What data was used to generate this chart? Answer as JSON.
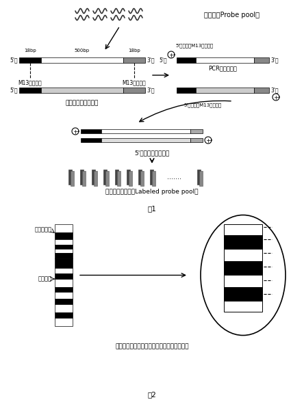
{
  "fig_width": 4.44,
  "fig_height": 5.88,
  "dpi": 100,
  "bg_color": "#ffffff",
  "probe_pool_label": "探针池（Probe pool）",
  "single_probe_label": "单个探针构造示意图",
  "pcr_label": "PCR扩增和标记",
  "double_strand_label": "5'端标记的双链探针",
  "labeled_pool_label": "标记后的探针库（Labeled probe pool）",
  "non_repeat_label": "非重复序列",
  "repeat_label": "重复序列",
  "uniform_probe_label": "长度均一的探针结合于基因组非重复序列区域",
  "m13up_label": "M13上游标签",
  "m13down_label": "M13下游标签",
  "m13up_primer_label": "5'端标记的M13上游引物",
  "m13down_primer_label": "5'端标记的M13下游引物",
  "title1": "图1",
  "title2": "图2",
  "18bp_left": "18bp",
  "500bp": "500bp",
  "18bp_right": "18bp"
}
